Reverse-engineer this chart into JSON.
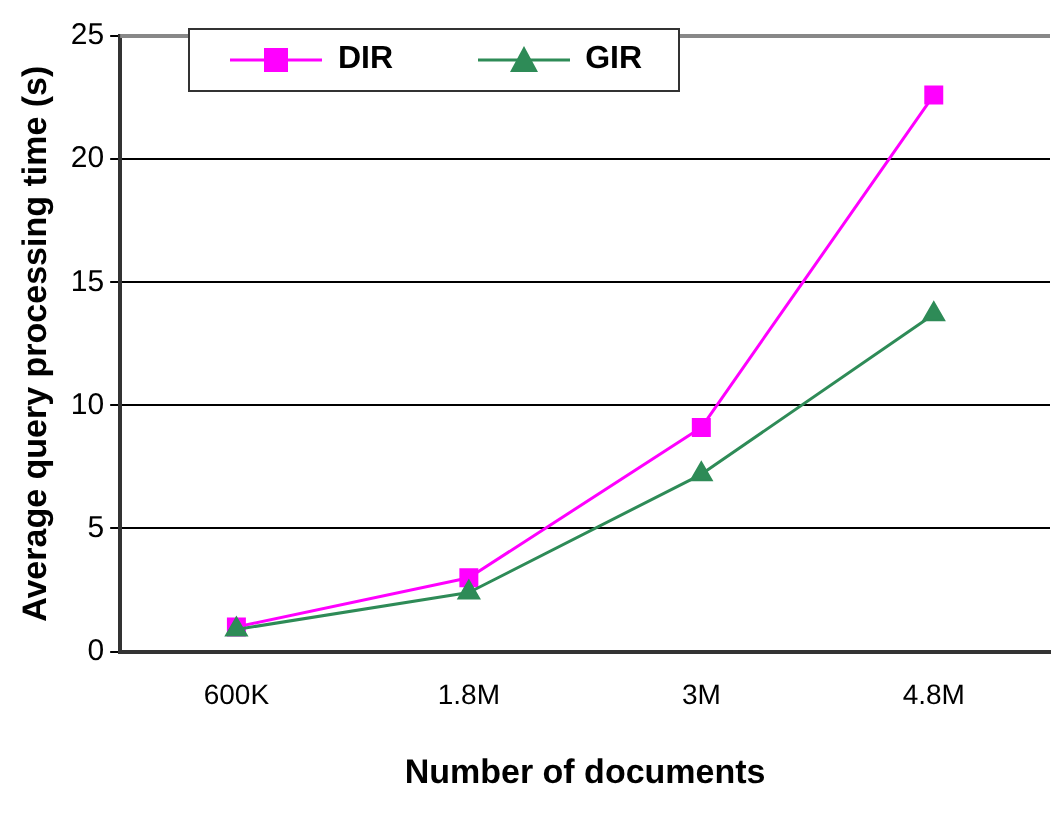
{
  "chart_data": {
    "type": "line",
    "xlabel": "Number of documents",
    "ylabel": "Average query processing time (s)",
    "categories": [
      "600K",
      "1.8M",
      "3M",
      "4.8M"
    ],
    "series": [
      {
        "name": "DIR",
        "color": "#ff00ff",
        "marker": "square",
        "values": [
          1.0,
          3.0,
          9.1,
          22.6
        ]
      },
      {
        "name": "GIR",
        "color": "#2e8b57",
        "marker": "triangle",
        "values": [
          0.9,
          2.4,
          7.2,
          13.7
        ]
      }
    ],
    "ylim": [
      0,
      25
    ],
    "yticks": [
      0,
      5,
      10,
      15,
      20,
      25
    ],
    "grid": "y",
    "legend": "top left",
    "line_style": "solid"
  }
}
